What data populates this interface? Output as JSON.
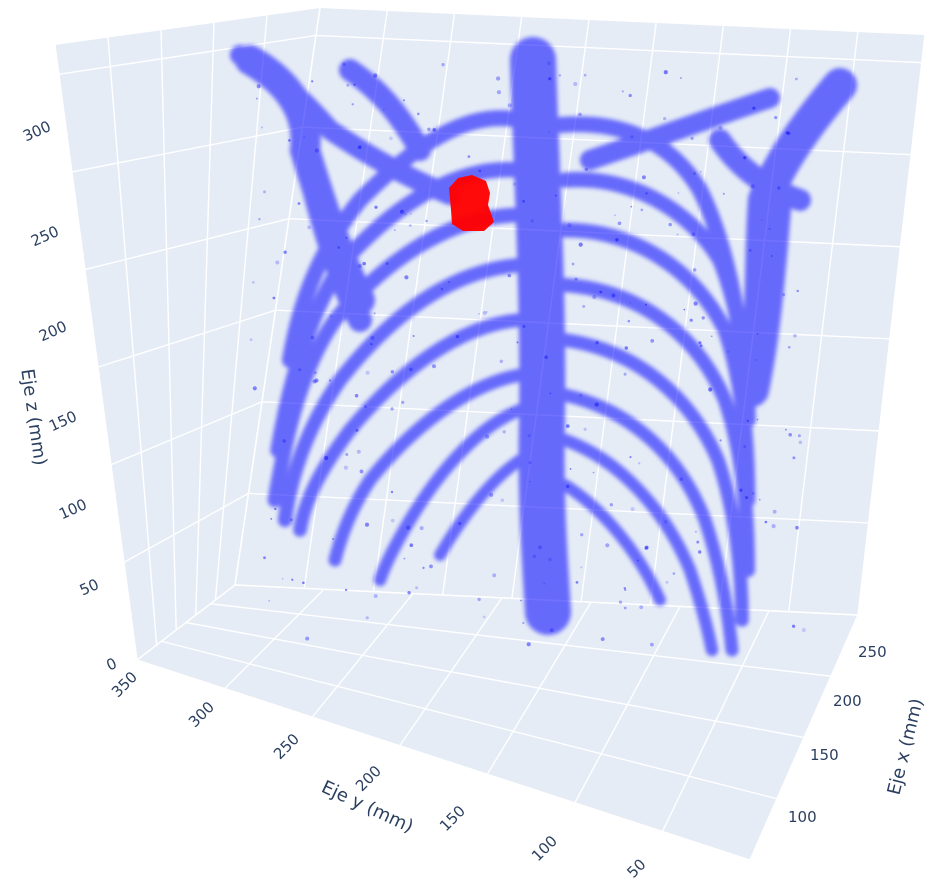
{
  "chart_data": {
    "type": "scatter3d",
    "colors": {
      "bone": "#0000ff",
      "lesion": "#ff0000",
      "pane": "#e5ecf6",
      "grid": "#ffffff",
      "text": "#2a3f5f"
    },
    "axes": {
      "x": {
        "title": "Eje x (mm)",
        "ticks": [
          "100",
          "150",
          "200",
          "250"
        ],
        "range": [
          80,
          270
        ]
      },
      "y": {
        "title": "Eje y (mm)",
        "ticks": [
          "350",
          "300",
          "250",
          "200",
          "150",
          "100",
          "50"
        ],
        "range": [
          20,
          360
        ]
      },
      "z": {
        "title": "Eje z (mm)",
        "ticks": [
          "0",
          "50",
          "100",
          "150",
          "200",
          "250",
          "300"
        ],
        "range": [
          0,
          330
        ]
      }
    },
    "series": [
      {
        "role": "bone",
        "color": "#0000ff"
      },
      {
        "role": "lesion",
        "color": "#ff0000"
      }
    ]
  }
}
